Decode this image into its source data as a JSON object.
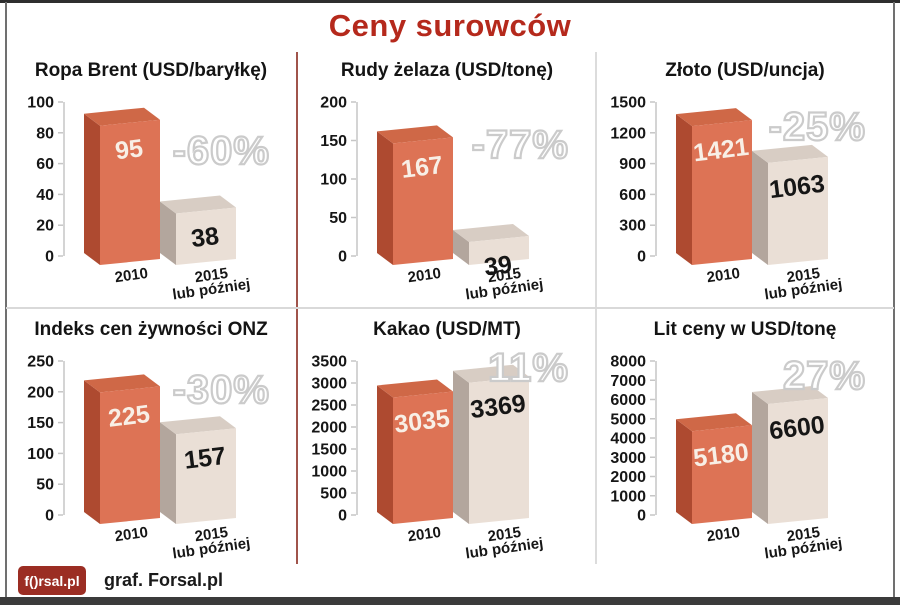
{
  "header": {
    "title": "Ceny surowców"
  },
  "footer": {
    "logo_text": "f()rsal.pl",
    "credit": "graf. Forsal.pl"
  },
  "colors": {
    "title_red": "#b5291c",
    "axis": "#c6c6c6",
    "tick_label": "#161616",
    "pct_fill": "#ffffff",
    "pct_outline": "#cbcbcb",
    "bar_2010": {
      "front": "#dd7355",
      "side": "#ae4a30",
      "top": "#cf6847",
      "label": "#f8efe6"
    },
    "bar_2015": {
      "front": "#eadfd6",
      "side": "#b3a69d",
      "top": "#d8cdc4",
      "label": "#161616"
    },
    "divider_red": "#a0544b",
    "divider_gray": "#dcdcdc",
    "logo_bg": "#9b2d23"
  },
  "chart_data": [
    {
      "type": "bar",
      "title": "Ropa Brent (USD/baryłkę)",
      "categories": [
        [
          "2010"
        ],
        [
          "2015",
          "lub później"
        ]
      ],
      "values": [
        95,
        38
      ],
      "change_label": "-60%",
      "yticks": [
        0,
        20,
        40,
        60,
        80,
        100
      ],
      "ylim": [
        0,
        100
      ],
      "grid": false,
      "legend": "none",
      "pct_top": 72
    },
    {
      "type": "bar",
      "title": "Rudy żelaza (USD/tonę)",
      "categories": [
        [
          "2010"
        ],
        [
          "2015",
          "lub później"
        ]
      ],
      "values": [
        167,
        39
      ],
      "change_label": "-77%",
      "yticks": [
        0,
        50,
        100,
        150,
        200
      ],
      "ylim": [
        0,
        200
      ],
      "grid": false,
      "legend": "none",
      "pct_top": 66
    },
    {
      "type": "bar",
      "title": "Złoto (USD/uncja)",
      "categories": [
        [
          "2010"
        ],
        [
          "2015",
          "lub później"
        ]
      ],
      "values": [
        1421,
        1063
      ],
      "change_label": "-25%",
      "yticks": [
        0,
        300,
        600,
        900,
        1200,
        1500
      ],
      "ylim": [
        0,
        1500
      ],
      "grid": false,
      "legend": "none",
      "pct_top": 48
    },
    {
      "type": "bar",
      "title": "Indeks cen żywności ONZ",
      "categories": [
        [
          "2010"
        ],
        [
          "2015",
          "lub później"
        ]
      ],
      "values": [
        225,
        157
      ],
      "change_label": "-30%",
      "yticks": [
        0,
        50,
        100,
        150,
        200,
        250
      ],
      "ylim": [
        0,
        250
      ],
      "grid": false,
      "legend": "none",
      "pct_top": 52
    },
    {
      "type": "bar",
      "title": "Kakao (USD/MT)",
      "categories": [
        [
          "2010"
        ],
        [
          "2015",
          "lub później"
        ]
      ],
      "values": [
        3035,
        3369
      ],
      "change_label": "11%",
      "yticks": [
        0,
        500,
        1000,
        1500,
        2000,
        2500,
        3000,
        3500
      ],
      "ylim": [
        0,
        3500
      ],
      "grid": false,
      "legend": "none",
      "pct_top": 30
    },
    {
      "type": "bar",
      "title": "Lit ceny w USD/tonę",
      "categories": [
        [
          "2010"
        ],
        [
          "2015",
          "lub później"
        ]
      ],
      "values": [
        5180,
        6600
      ],
      "change_label": "27%",
      "yticks": [
        0,
        1000,
        2000,
        3000,
        4000,
        5000,
        6000,
        7000,
        8000
      ],
      "ylim": [
        0,
        8000
      ],
      "grid": false,
      "legend": "none",
      "pct_top": 38
    }
  ]
}
